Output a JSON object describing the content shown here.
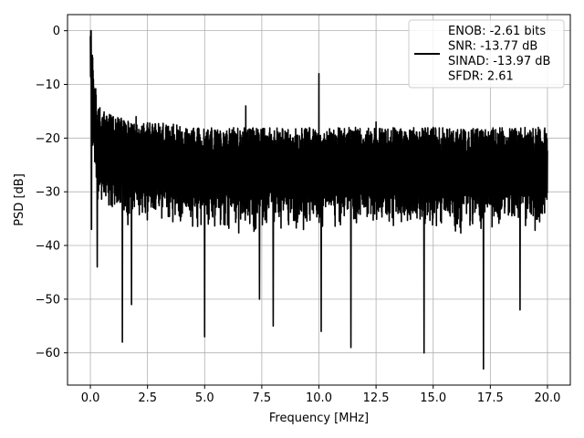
{
  "chart_data": {
    "type": "line",
    "xlabel": "Frequency [MHz]",
    "ylabel": "PSD [dB]",
    "xlim": [
      -1.0,
      21.0
    ],
    "ylim": [
      -66,
      3
    ],
    "x_ticks": [
      0.0,
      2.5,
      5.0,
      7.5,
      10.0,
      12.5,
      15.0,
      17.5,
      20.0
    ],
    "x_tick_labels": [
      "0.0",
      "2.5",
      "5.0",
      "7.5",
      "10.0",
      "12.5",
      "15.0",
      "17.5",
      "20.0"
    ],
    "y_ticks": [
      0,
      -10,
      -20,
      -30,
      -40,
      -50,
      -60
    ],
    "y_tick_labels": [
      "0",
      "−10",
      "−20",
      "−30",
      "−40",
      "−50",
      "−60"
    ],
    "grid": true,
    "legend_position": "top-right",
    "legend": {
      "lines": [
        "ENOB: -2.61 bits",
        "SNR: -13.77 dB",
        "SINAD: -13.97 dB",
        "SFDR: 2.61"
      ]
    },
    "series": [
      {
        "color": "#000000",
        "x": [
          0.0,
          0.02,
          0.05,
          0.1,
          0.2,
          0.3,
          0.4,
          0.5,
          0.7,
          1.0,
          1.3,
          1.5,
          1.8,
          2.0,
          2.5,
          3.0,
          3.5,
          4.0,
          4.5,
          5.0,
          5.5,
          6.0,
          6.5,
          6.8,
          7.0,
          7.5,
          8.0,
          8.5,
          9.0,
          9.5,
          10.0,
          10.5,
          11.0,
          11.5,
          12.0,
          12.5,
          13.0,
          13.5,
          14.0,
          14.5,
          15.0,
          15.5,
          16.0,
          16.5,
          17.0,
          17.5,
          18.0,
          18.5,
          19.0,
          19.5,
          20.0
        ],
        "y": [
          -1,
          -3,
          -8,
          -15,
          -18,
          -22,
          -22,
          -24,
          -24,
          -25,
          -25,
          -25,
          -26,
          -26,
          -26,
          -26,
          -26,
          -27,
          -27,
          -27,
          -27,
          -27,
          -27,
          -27,
          -27,
          -27,
          -27,
          -27,
          -27,
          -27,
          -27,
          -27,
          -27,
          -27,
          -27,
          -27,
          -27,
          -27,
          -27,
          -27,
          -27,
          -27,
          -27,
          -27,
          -27,
          -27,
          -27,
          -27,
          -27,
          -27,
          -27
        ]
      }
    ],
    "peaks": {
      "x": [
        0.0,
        0.1,
        0.3,
        0.7,
        1.0,
        2.0,
        5.0,
        6.8,
        10.0,
        12.5,
        15.0,
        19.6
      ],
      "y": [
        -1,
        -5,
        -14,
        -16,
        -16,
        -16,
        -16,
        -14,
        -8,
        -17,
        -18,
        -18
      ]
    },
    "dips": {
      "x": [
        0.05,
        0.3,
        1.4,
        1.8,
        5.0,
        7.4,
        8.0,
        10.1,
        11.4,
        14.6,
        17.2,
        18.8
      ],
      "y": [
        -37,
        -44,
        -58,
        -51,
        -57,
        -50,
        -55,
        -56,
        -59,
        -60,
        -63,
        -52
      ]
    }
  }
}
